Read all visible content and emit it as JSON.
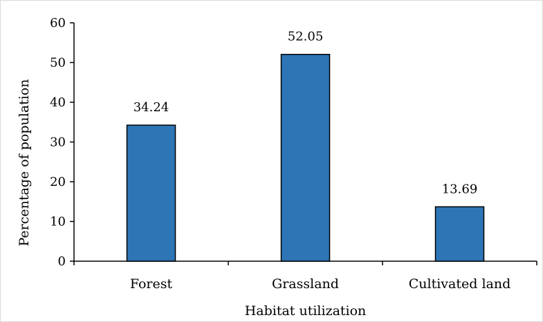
{
  "chart_data": {
    "type": "bar",
    "categories": [
      "Forest",
      "Grassland",
      "Cultivated land"
    ],
    "values": [
      34.24,
      52.05,
      13.69
    ],
    "data_labels": [
      "34.24",
      "52.05",
      "13.69"
    ],
    "title": "",
    "xlabel": "Habitat utilization",
    "ylabel": "Percentage of population",
    "ylim": [
      0,
      60
    ],
    "yticks": [
      0,
      10,
      20,
      30,
      40,
      50,
      60
    ],
    "grid": false,
    "legend": "none",
    "bar_color": "#2e75b6",
    "bar_edge_color": "#000000"
  }
}
